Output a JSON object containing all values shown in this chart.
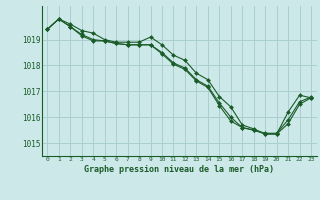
{
  "title": "Graphe pression niveau de la mer (hPa)",
  "bg_color": "#cce8e8",
  "grid_color": "#aacfcf",
  "line_color": "#1a5c28",
  "marker_color": "#1a5c28",
  "xlim": [
    -0.5,
    23.5
  ],
  "ylim": [
    1014.5,
    1020.3
  ],
  "yticks": [
    1015,
    1016,
    1017,
    1018,
    1019
  ],
  "xticks": [
    0,
    1,
    2,
    3,
    4,
    5,
    6,
    7,
    8,
    9,
    10,
    11,
    12,
    13,
    14,
    15,
    16,
    17,
    18,
    19,
    20,
    21,
    22,
    23
  ],
  "series": [
    [
      1019.4,
      1019.8,
      1019.6,
      1019.35,
      1019.25,
      1019.0,
      1018.9,
      1018.9,
      1018.9,
      1019.1,
      1018.8,
      1018.4,
      1018.2,
      1017.7,
      1017.45,
      1016.8,
      1016.4,
      1015.7,
      1015.55,
      1015.35,
      1015.35,
      1016.2,
      1016.85,
      1016.75
    ],
    [
      1019.4,
      1019.8,
      1019.5,
      1019.2,
      1019.0,
      1018.95,
      1018.85,
      1018.8,
      1018.8,
      1018.8,
      1018.45,
      1018.05,
      1017.85,
      1017.4,
      1017.15,
      1016.45,
      1015.85,
      1015.6,
      1015.5,
      1015.35,
      1015.35,
      1015.75,
      1016.5,
      1016.75
    ],
    [
      1019.4,
      1019.8,
      1019.5,
      1019.15,
      1018.95,
      1018.95,
      1018.85,
      1018.8,
      1018.8,
      1018.8,
      1018.5,
      1018.1,
      1017.9,
      1017.45,
      1017.2,
      1016.55,
      1016.0,
      1015.6,
      1015.5,
      1015.38,
      1015.38,
      1015.9,
      1016.6,
      1016.78
    ]
  ]
}
